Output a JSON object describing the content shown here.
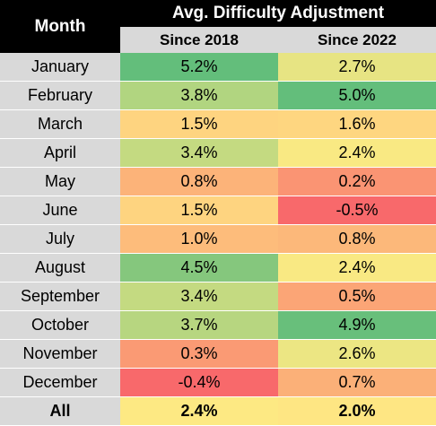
{
  "header": {
    "month": "Month",
    "group": "Avg. Difficulty Adjustment",
    "col_a": "Since 2018",
    "col_b": "Since 2022"
  },
  "rows": [
    {
      "month": "January",
      "a": "5.2%",
      "b": "2.7%",
      "ca": "#63be7b",
      "cb": "#e7e483"
    },
    {
      "month": "February",
      "a": "3.8%",
      "b": "5.0%",
      "ca": "#b1d580",
      "cb": "#63be7b"
    },
    {
      "month": "March",
      "a": "1.5%",
      "b": "1.6%",
      "ca": "#fed480",
      "cb": "#fed680"
    },
    {
      "month": "April",
      "a": "3.4%",
      "b": "2.4%",
      "ca": "#c4da81",
      "cb": "#f9e983"
    },
    {
      "month": "May",
      "a": "0.8%",
      "b": "0.2%",
      "ca": "#fcb379",
      "cb": "#fa9473"
    },
    {
      "month": "June",
      "a": "1.5%",
      "b": "-0.5%",
      "ca": "#fed480",
      "cb": "#f8696b"
    },
    {
      "month": "July",
      "a": "1.0%",
      "b": "0.8%",
      "ca": "#fdbc7b",
      "cb": "#fcb87a"
    },
    {
      "month": "August",
      "a": "4.5%",
      "b": "2.4%",
      "ca": "#85c77d",
      "cb": "#f9e983"
    },
    {
      "month": "September",
      "a": "3.4%",
      "b": "0.5%",
      "ca": "#c4da81",
      "cb": "#fba576"
    },
    {
      "month": "October",
      "a": "3.7%",
      "b": "4.9%",
      "ca": "#b7d680",
      "cb": "#68bf7b"
    },
    {
      "month": "November",
      "a": "0.3%",
      "b": "2.6%",
      "ca": "#fa9a74",
      "cb": "#ece683"
    },
    {
      "month": "December",
      "a": "-0.4%",
      "b": "0.7%",
      "ca": "#f8696b",
      "cb": "#fbb078"
    }
  ],
  "total": {
    "month": "All",
    "a": "2.4%",
    "b": "2.0%",
    "ca": "#fde983",
    "cb": "#fee683"
  },
  "colors": {
    "header_bg": "#000000",
    "label_bg": "#d9d9d9",
    "max": "#63be7b",
    "mid": "#ffeb84",
    "min": "#f8696b"
  }
}
